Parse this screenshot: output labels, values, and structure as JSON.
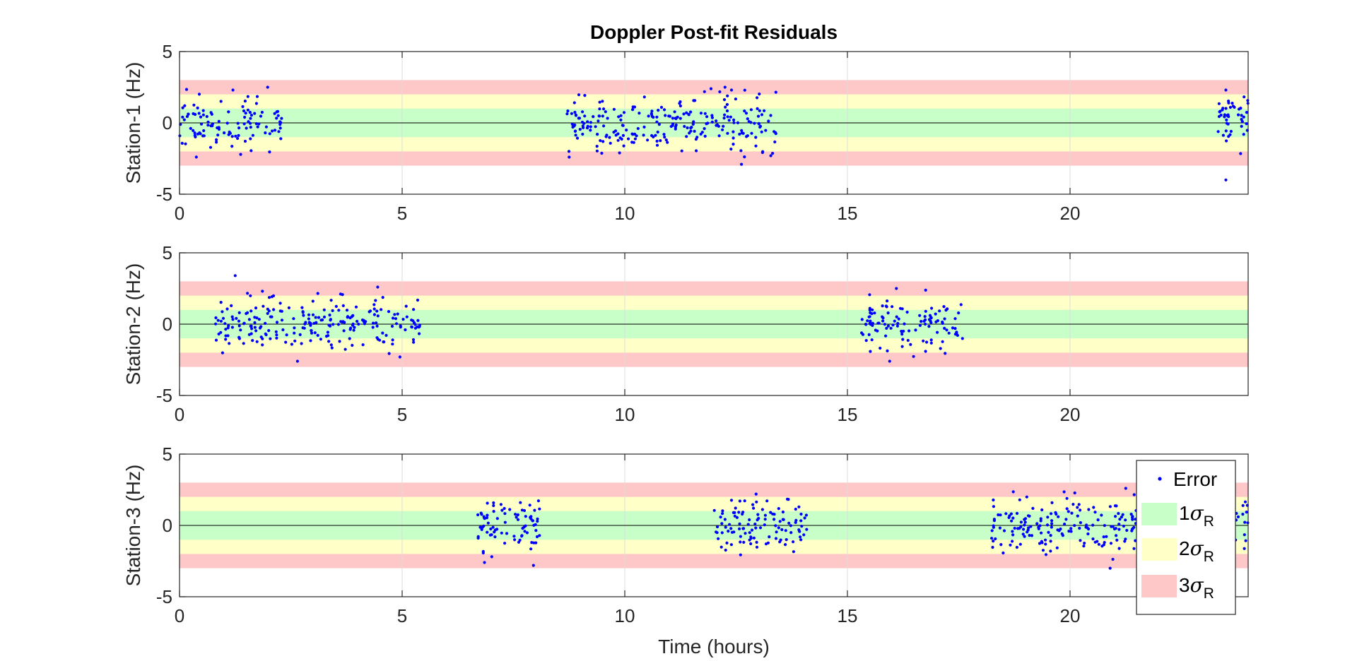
{
  "chart_data": {
    "type": "scatter",
    "title": "Doppler Post-fit Residuals",
    "xlabel": "Time (hours)",
    "xlim": [
      0,
      24
    ],
    "xticks": [
      0,
      5,
      10,
      15,
      20
    ],
    "grid": "vertical",
    "legend": {
      "placement": "bottom-right",
      "entries": [
        {
          "label": "Error",
          "marker": "dot",
          "color": "#0000ff"
        },
        {
          "label": "1",
          "sigma": "σ",
          "sub": "R",
          "color": "#c8ffc8"
        },
        {
          "label": "2",
          "sigma": "σ",
          "sub": "R",
          "color": "#ffffc8"
        },
        {
          "label": "3",
          "sigma": "σ",
          "sub": "R",
          "color": "#ffc8c8"
        }
      ]
    },
    "bands": [
      {
        "name": "1σR",
        "range": [
          -1,
          1
        ],
        "color": "#c8ffc8"
      },
      {
        "name": "2σR",
        "range": [
          -2,
          2
        ],
        "color": "#ffffc8"
      },
      {
        "name": "3σR",
        "range": [
          -3,
          3
        ],
        "color": "#ffc8c8"
      }
    ],
    "panels": [
      {
        "ylabel": "Station-1 (Hz)",
        "ylim": [
          -5,
          5
        ],
        "yticks": [
          -5,
          0,
          5
        ],
        "passes": [
          {
            "x_range": [
              0.0,
              2.3
            ],
            "count": 110,
            "spread": 0.95,
            "seed": 11
          },
          {
            "x_range": [
              8.7,
              13.4
            ],
            "count": 240,
            "spread": 0.95,
            "seed": 23
          },
          {
            "x_range": [
              23.3,
              24.0
            ],
            "count": 45,
            "spread": 1.05,
            "seed": 37
          }
        ],
        "outliers": [
          {
            "x": 1.98,
            "y": 2.5
          },
          {
            "x": 1.2,
            "y": 2.3
          },
          {
            "x": 12.25,
            "y": 2.5
          },
          {
            "x": 12.62,
            "y": -2.9
          },
          {
            "x": 23.5,
            "y": 2.3
          },
          {
            "x": 23.5,
            "y": -4.0
          },
          {
            "x": 8.75,
            "y": -2.4
          }
        ]
      },
      {
        "ylabel": "Station-2 (Hz)",
        "ylim": [
          -5,
          5
        ],
        "yticks": [
          -5,
          0,
          5
        ],
        "passes": [
          {
            "x_range": [
              0.75,
              5.4
            ],
            "count": 230,
            "spread": 0.95,
            "seed": 41
          },
          {
            "x_range": [
              15.3,
              17.6
            ],
            "count": 115,
            "spread": 0.95,
            "seed": 53
          }
        ],
        "outliers": [
          {
            "x": 1.25,
            "y": 3.4
          },
          {
            "x": 4.45,
            "y": 2.6
          },
          {
            "x": 16.1,
            "y": 2.5
          },
          {
            "x": 2.65,
            "y": -2.6
          },
          {
            "x": 4.95,
            "y": -2.3
          },
          {
            "x": 15.95,
            "y": -2.6
          }
        ]
      },
      {
        "ylabel": "Station-3 (Hz)",
        "ylim": [
          -5,
          5
        ],
        "yticks": [
          -5,
          0,
          5
        ],
        "passes": [
          {
            "x_range": [
              6.7,
              8.1
            ],
            "count": 80,
            "spread": 0.95,
            "seed": 67
          },
          {
            "x_range": [
              12.0,
              14.1
            ],
            "count": 110,
            "spread": 0.85,
            "seed": 79
          },
          {
            "x_range": [
              18.2,
              24.0
            ],
            "count": 290,
            "spread": 0.95,
            "seed": 83
          }
        ],
        "outliers": [
          {
            "x": 12.95,
            "y": 2.2
          },
          {
            "x": 20.9,
            "y": -3.0
          },
          {
            "x": 7.95,
            "y": -2.8
          },
          {
            "x": 6.85,
            "y": -2.6
          },
          {
            "x": 21.25,
            "y": 2.6
          }
        ]
      }
    ]
  }
}
